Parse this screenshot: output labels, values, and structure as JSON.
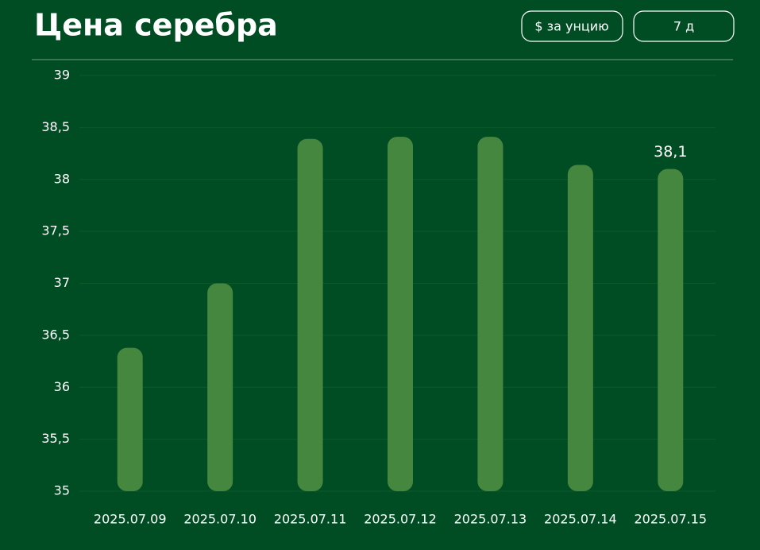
{
  "header": {
    "title": "Цена серебра"
  },
  "controls": [
    "$ за унцию",
    "7 д"
  ],
  "chart_data": {
    "type": "bar",
    "categories": [
      "2025.07.09",
      "2025.07.10",
      "2025.07.11",
      "2025.07.12",
      "2025.07.13",
      "2025.07.14",
      "2025.07.15"
    ],
    "values": [
      36.38,
      37.0,
      38.39,
      38.41,
      38.41,
      38.14,
      38.1
    ],
    "value_labels": [
      null,
      null,
      null,
      null,
      null,
      null,
      "38,1"
    ],
    "color": "#45873f",
    "ylim": [
      35,
      39
    ],
    "yticks": [
      35,
      {
        "value": 35.5,
        "label": "35,5"
      },
      36,
      {
        "value": 36.5,
        "label": "36,5"
      },
      37,
      {
        "value": 37.5,
        "label": "37,5"
      },
      38,
      {
        "value": 38.5,
        "label": "38,5"
      },
      39
    ],
    "grid": true
  }
}
